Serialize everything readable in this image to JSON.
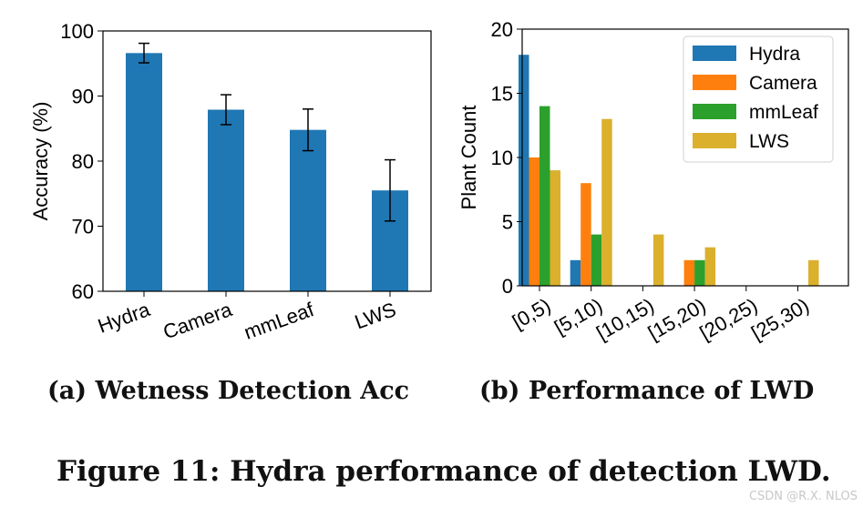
{
  "chart_data": [
    {
      "type": "bar",
      "panel": "a",
      "title": "",
      "ylabel": "Accuracy (%)",
      "xlabel": "",
      "ylim": [
        60,
        100
      ],
      "yticks": [
        60,
        70,
        80,
        90,
        100
      ],
      "categories": [
        "Hydra",
        "Camera",
        "mmLeaf",
        "LWS"
      ],
      "values": [
        96.6,
        87.9,
        84.8,
        75.5
      ],
      "errors": [
        1.5,
        2.3,
        3.2,
        4.7
      ],
      "color": "#1f77b4",
      "grid": false
    },
    {
      "type": "bar",
      "panel": "b",
      "title": "",
      "ylabel": "Plant Count",
      "xlabel": "",
      "ylim": [
        0,
        20
      ],
      "yticks": [
        0,
        5,
        10,
        15,
        20
      ],
      "categories": [
        "[0,5)",
        "[5,10)",
        "[10,15)",
        "[15,20)",
        "[20,25)",
        "[25,30)"
      ],
      "series": [
        {
          "name": "Hydra",
          "color": "#1f77b4",
          "values": [
            18,
            2,
            0,
            0,
            0,
            0
          ]
        },
        {
          "name": "Camera",
          "color": "#ff7f0e",
          "values": [
            10,
            8,
            0,
            2,
            0,
            0
          ]
        },
        {
          "name": "mmLeaf",
          "color": "#2ca02c",
          "values": [
            14,
            4,
            0,
            2,
            0,
            0
          ]
        },
        {
          "name": "LWS",
          "color": "#dbb02d",
          "values": [
            9,
            13,
            4,
            3,
            0,
            2
          ]
        }
      ],
      "legend": "top-right",
      "grid": false
    }
  ],
  "captions": {
    "a": "(a) Wetness Detection Acc",
    "b": "(b) Performance of LWD",
    "figure": "Figure 11: Hydra performance of detection LWD."
  },
  "watermark": "CSDN @R.X. NLOS"
}
